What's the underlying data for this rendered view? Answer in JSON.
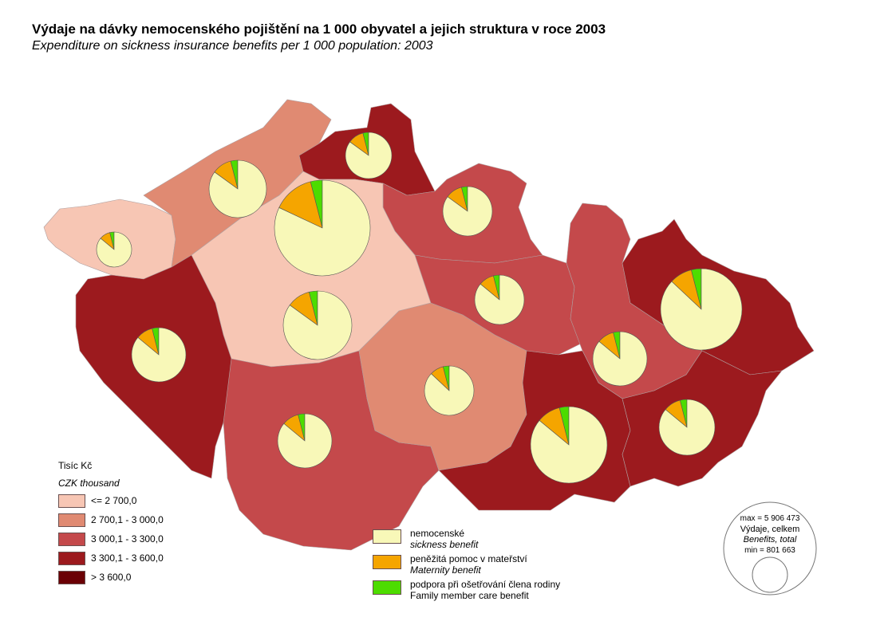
{
  "title": "Výdaje na dávky nemocenského pojištění na 1 000 obyvatel a jejich struktura v roce 2003",
  "subtitle": "Expenditure on sickness insurance benefits per 1 000 population: 2003",
  "choropleth_legend": {
    "unit": "Tisíc Kč",
    "unit_en": "CZK thousand",
    "classes": [
      {
        "label": "<= 2 700,0",
        "color": "#f7c6b4"
      },
      {
        "label": "2 700,1 - 3 000,0",
        "color": "#e08a72"
      },
      {
        "label": "3 000,1 - 3 300,0",
        "color": "#c4494b"
      },
      {
        "label": "3 300,1 - 3 600,0",
        "color": "#9c1a1e"
      },
      {
        "label": "> 3 600,0",
        "color": "#6b0005"
      }
    ]
  },
  "pie_legend": {
    "items": [
      {
        "label": "nemocenské",
        "label_en": "sickness benefit",
        "color": "#f8f8b8"
      },
      {
        "label": "peněžitá pomoc v mateřství",
        "label_en": "Maternity benefit",
        "color": "#f5a500"
      },
      {
        "label": "podpora při ošetřování člena rodiny",
        "label_en": "Family member care benefit",
        "color": "#4ddc00"
      }
    ]
  },
  "size_legend": {
    "max": "max = 5 906 473",
    "label": "Výdaje, celkem",
    "label_en": "Benefits, total",
    "min": "min = 801 663"
  },
  "chart_data": {
    "type": "choropleth-with-pies",
    "regions": [
      {
        "class": 0,
        "shares": [
          0.86,
          0.1,
          0.04
        ]
      },
      {
        "class": 1,
        "shares": [
          0.85,
          0.11,
          0.04
        ]
      },
      {
        "class": 3,
        "shares": [
          0.85,
          0.11,
          0.04
        ]
      },
      {
        "class": 2,
        "shares": [
          0.85,
          0.11,
          0.04
        ]
      },
      {
        "class": 4,
        "shares": [
          0.82,
          0.14,
          0.04
        ]
      },
      {
        "class": 0,
        "shares": [
          0.85,
          0.11,
          0.04
        ]
      },
      {
        "class": 3,
        "shares": [
          0.86,
          0.1,
          0.04
        ]
      },
      {
        "class": 2,
        "shares": [
          0.86,
          0.1,
          0.04
        ]
      },
      {
        "class": 1,
        "shares": [
          0.87,
          0.09,
          0.04
        ]
      },
      {
        "class": 2,
        "shares": [
          0.86,
          0.1,
          0.04
        ]
      },
      {
        "class": 2,
        "shares": [
          0.86,
          0.1,
          0.04
        ]
      },
      {
        "class": 3,
        "shares": [
          0.87,
          0.09,
          0.04
        ]
      },
      {
        "class": 3,
        "shares": [
          0.86,
          0.1,
          0.04
        ]
      },
      {
        "class": 3,
        "shares": [
          0.86,
          0.1,
          0.04
        ]
      }
    ]
  }
}
